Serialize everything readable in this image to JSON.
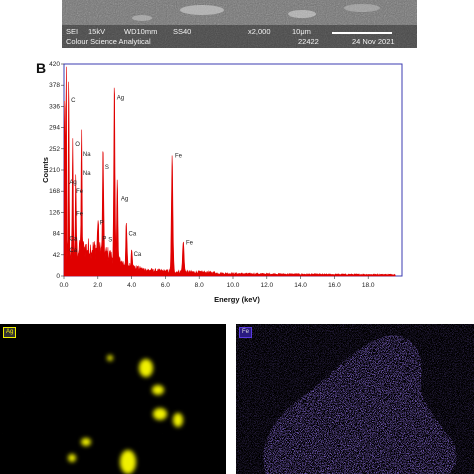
{
  "sem": {
    "left_row1": "SEI",
    "left_row2": "Colour Science Analytical",
    "row1_items": [
      "15kV",
      "WD10mm",
      "SS40",
      "x2,000",
      "10μm"
    ],
    "serial": "22422",
    "date": "24 Nov 2021"
  },
  "panel_label": "B",
  "chart_data": {
    "type": "line",
    "xlabel": "Energy (keV)",
    "ylabel": "Counts",
    "xlim": [
      0,
      20
    ],
    "ylim": [
      0,
      420
    ],
    "x_ticks": [
      "0.0",
      "2.0",
      "4.0",
      "6.0",
      "8.0",
      "10.0",
      "12.0",
      "14.0",
      "16.0",
      "18.0"
    ],
    "x_tick_values": [
      0,
      2,
      4,
      6,
      8,
      10,
      12,
      14,
      16,
      18
    ],
    "y_ticks": [
      "0",
      "42",
      "84",
      "126",
      "168",
      "210",
      "252",
      "294",
      "336",
      "378",
      "420"
    ],
    "y_tick_values": [
      0,
      42,
      84,
      126,
      168,
      210,
      252,
      294,
      336,
      378,
      420
    ],
    "color": "#e00000",
    "frame_color": "#3b3bb0",
    "peaks": [
      {
        "x": 0.28,
        "y": 360
      },
      {
        "x": 0.52,
        "y": 240
      },
      {
        "x": 0.7,
        "y": 140
      },
      {
        "x": 1.04,
        "y": 225
      },
      {
        "x": 2.01,
        "y": 62
      },
      {
        "x": 2.31,
        "y": 215
      },
      {
        "x": 2.98,
        "y": 345
      },
      {
        "x": 3.15,
        "y": 160
      },
      {
        "x": 3.69,
        "y": 80
      },
      {
        "x": 4.01,
        "y": 38
      },
      {
        "x": 6.4,
        "y": 230
      },
      {
        "x": 7.06,
        "y": 60
      }
    ],
    "annotations": [
      {
        "text": "C",
        "x": 0.3,
        "y": 345
      },
      {
        "text": "O",
        "x": 0.55,
        "y": 258
      },
      {
        "text": "Na",
        "x": 1.0,
        "y": 238
      },
      {
        "text": "Na",
        "x": 1.0,
        "y": 200
      },
      {
        "text": "Ag",
        "x": 0.2,
        "y": 182
      },
      {
        "text": "Fe",
        "x": 0.6,
        "y": 164
      },
      {
        "text": "Fe",
        "x": 0.6,
        "y": 120
      },
      {
        "text": "Ca",
        "x": 0.2,
        "y": 70
      },
      {
        "text": "Ca",
        "x": 0.2,
        "y": 48
      },
      {
        "text": "P",
        "x": 2.0,
        "y": 102
      },
      {
        "text": "S",
        "x": 2.3,
        "y": 212
      },
      {
        "text": "P",
        "x": 2.15,
        "y": 70
      },
      {
        "text": "S",
        "x": 2.5,
        "y": 68
      },
      {
        "text": "Ag",
        "x": 3.0,
        "y": 350
      },
      {
        "text": "Ag",
        "x": 3.25,
        "y": 150
      },
      {
        "text": "Ca",
        "x": 3.7,
        "y": 80
      },
      {
        "text": "Ca",
        "x": 4.0,
        "y": 40
      },
      {
        "text": "Fe",
        "x": 6.45,
        "y": 235
      },
      {
        "text": "Fe",
        "x": 7.1,
        "y": 62
      }
    ]
  },
  "maps": {
    "left_tag": "Ag",
    "left_color": "#f0f000",
    "right_tag": "Fe",
    "right_color": "#4a2bd8"
  }
}
